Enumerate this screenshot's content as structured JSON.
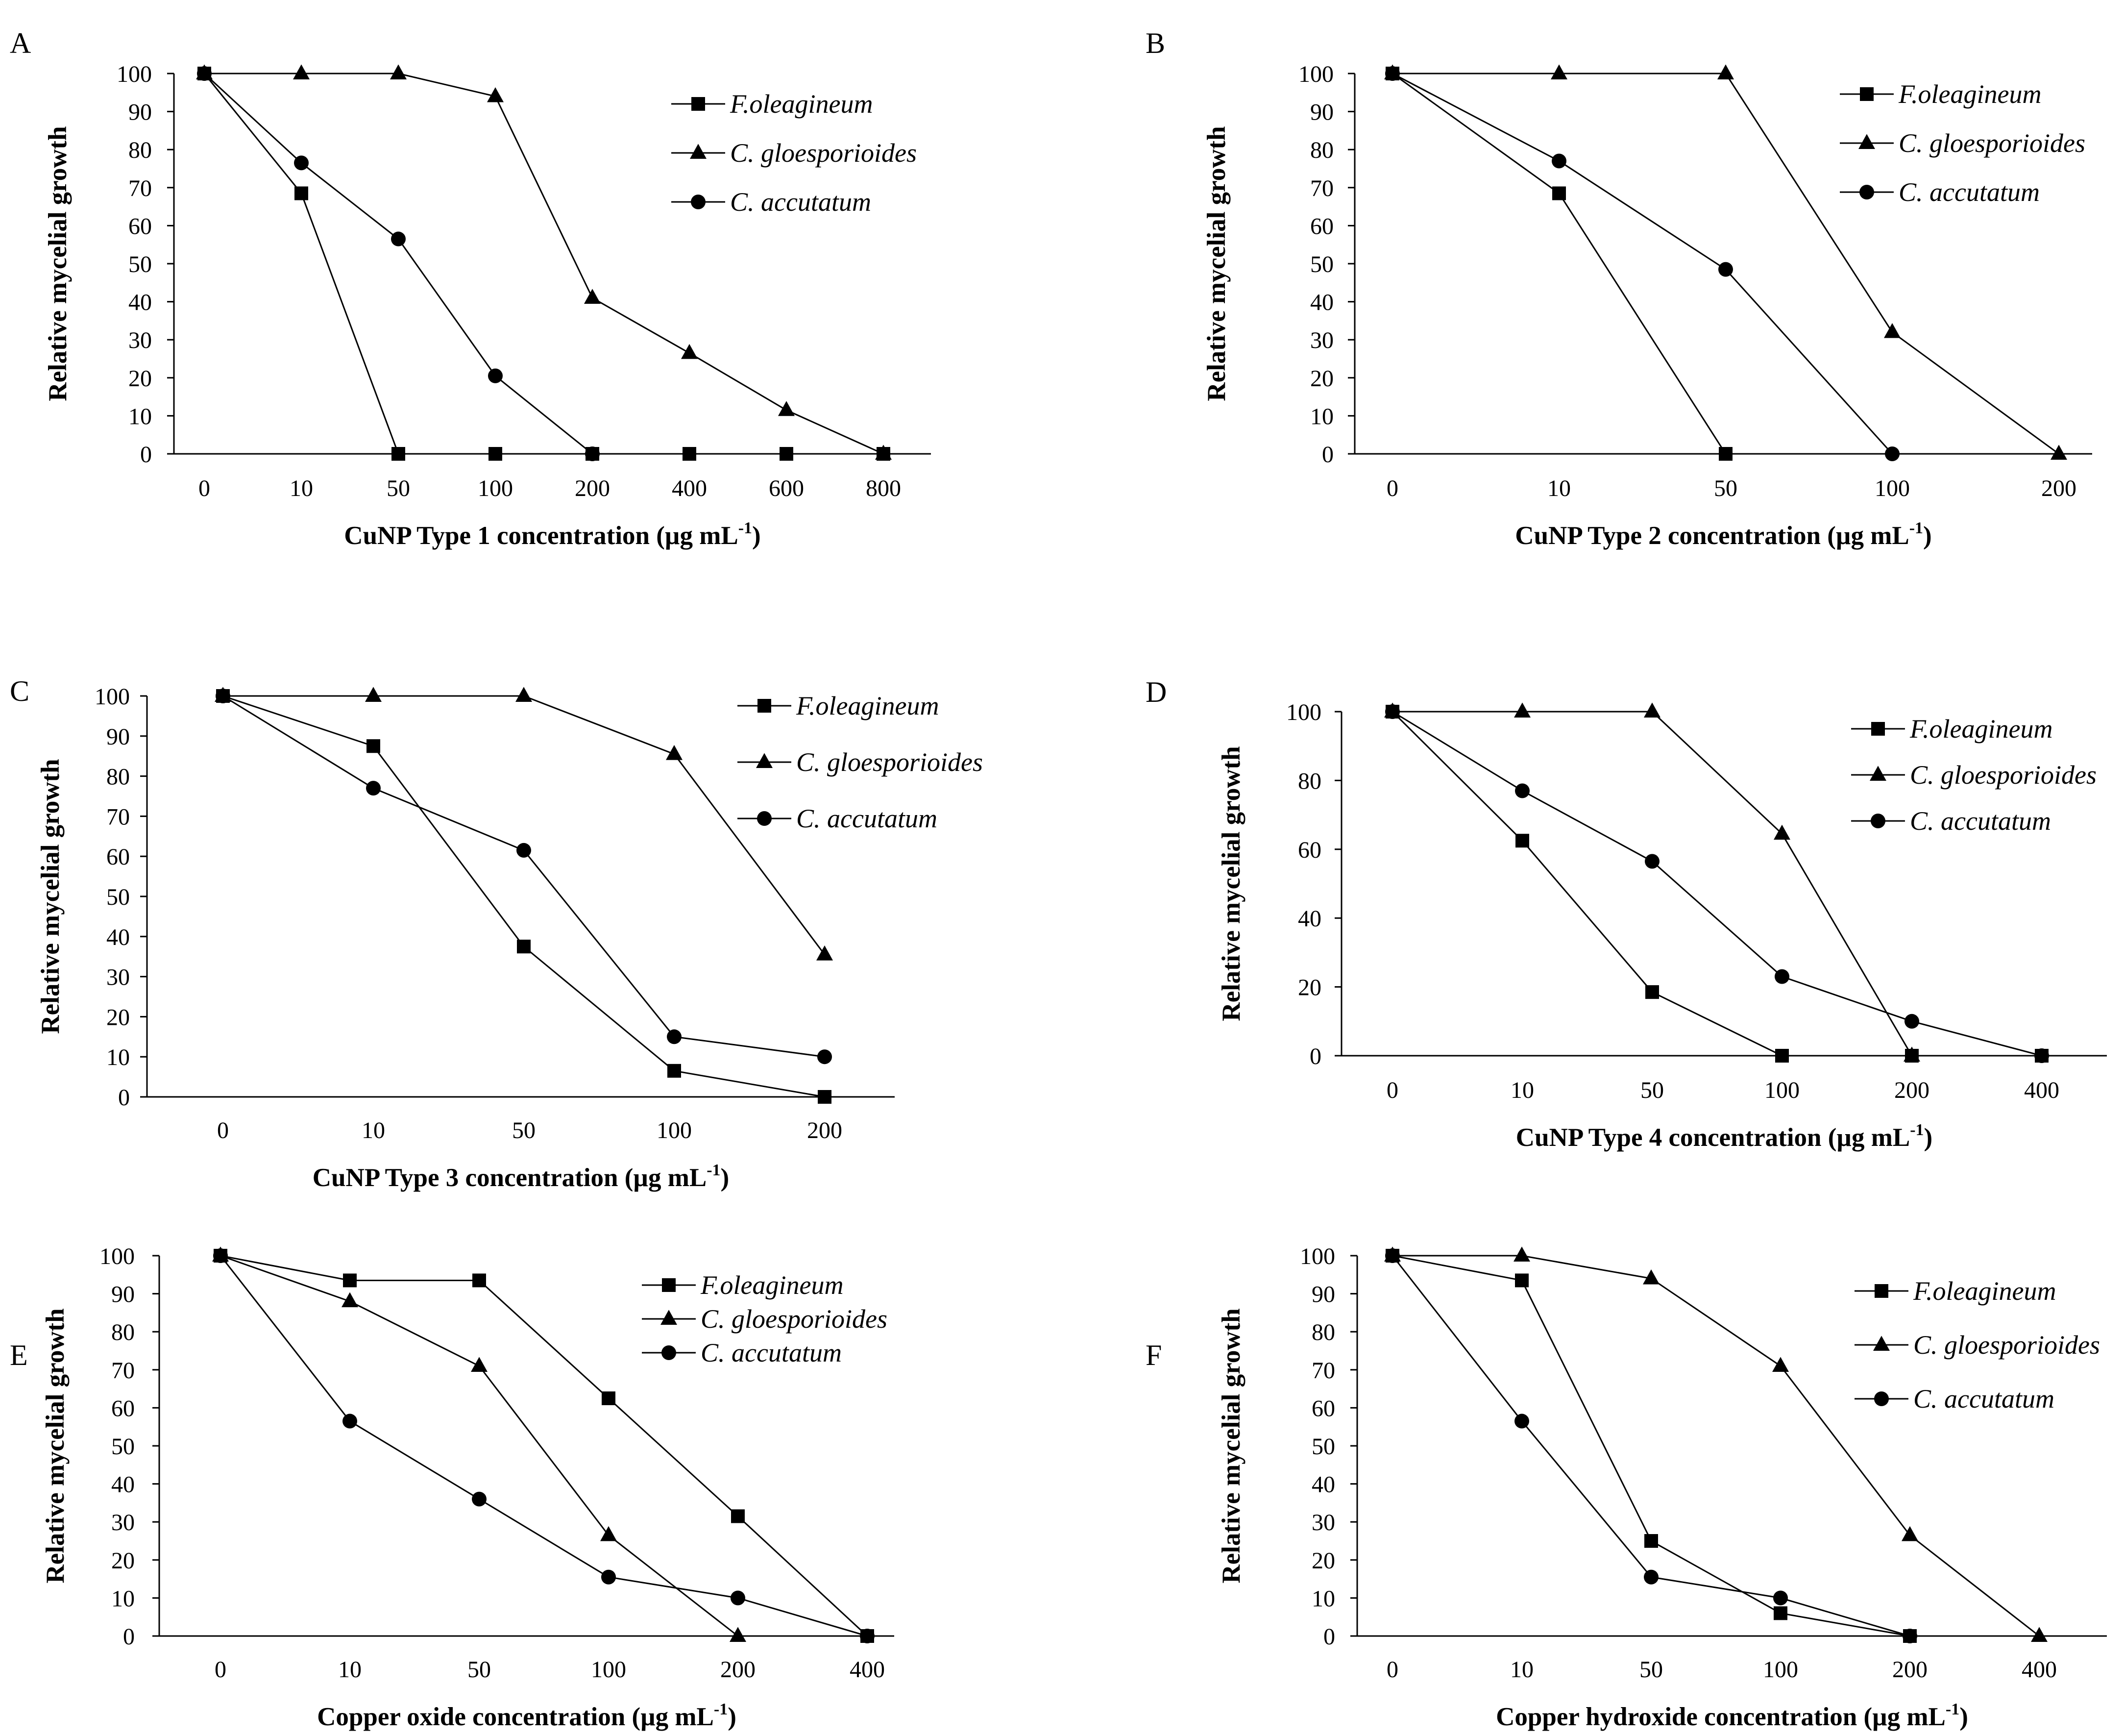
{
  "colors": {
    "line": "#000000",
    "axis": "#000000",
    "background": "#ffffff"
  },
  "chart_data": [
    {
      "panel": "A",
      "type": "line",
      "categories": [
        "0",
        "10",
        "50",
        "100",
        "200",
        "400",
        "600",
        "800"
      ],
      "ylim": [
        0,
        100
      ],
      "yticks": [
        0,
        10,
        20,
        30,
        40,
        50,
        60,
        70,
        80,
        90,
        100
      ],
      "ylabel": "Relative mycelial growth",
      "xlabel_main": "CuNP Type 1 concentration (µg mL",
      "xlabel_sup": "-1",
      "xlabel_end": ")",
      "legend_position": "top-right",
      "series": [
        {
          "name": "F.oleagineum",
          "marker": "square",
          "values": [
            100,
            68.5,
            0,
            0,
            0,
            0,
            0,
            0
          ]
        },
        {
          "name": "C. gloesporioides",
          "marker": "triangle",
          "values": [
            100,
            100,
            100,
            94,
            41,
            26.5,
            11.5,
            0
          ]
        },
        {
          "name": "C. accutatum",
          "marker": "circle",
          "values": [
            100,
            76.5,
            56.5,
            20.5,
            0,
            null,
            null,
            null
          ]
        }
      ]
    },
    {
      "panel": "B",
      "type": "line",
      "categories": [
        "0",
        "10",
        "50",
        "100",
        "200"
      ],
      "ylim": [
        0,
        100
      ],
      "yticks": [
        0,
        10,
        20,
        30,
        40,
        50,
        60,
        70,
        80,
        90,
        100
      ],
      "ylabel": "Relative mycelial growth",
      "xlabel_main": "CuNP Type 2 concentration (µg mL",
      "xlabel_sup": "-1",
      "xlabel_end": ")",
      "legend_position": "top-right",
      "series": [
        {
          "name": "F.oleagineum",
          "marker": "square",
          "values": [
            100,
            68.5,
            0,
            null,
            null
          ]
        },
        {
          "name": "C. gloesporioides",
          "marker": "triangle",
          "values": [
            100,
            100,
            100,
            32,
            0
          ]
        },
        {
          "name": "C. accutatum",
          "marker": "circle",
          "values": [
            100,
            77,
            48.5,
            0,
            null
          ]
        }
      ]
    },
    {
      "panel": "C",
      "type": "line",
      "categories": [
        "0",
        "10",
        "50",
        "100",
        "200"
      ],
      "ylim": [
        0,
        100
      ],
      "yticks": [
        0,
        10,
        20,
        30,
        40,
        50,
        60,
        70,
        80,
        90,
        100
      ],
      "ylabel": "Relative mycelial growth",
      "xlabel_main": "CuNP Type 3 concentration (µg mL",
      "xlabel_sup": "-1",
      "xlabel_end": ")",
      "legend_position": "top-right",
      "series": [
        {
          "name": "F.oleagineum",
          "marker": "square",
          "values": [
            100,
            87.5,
            37.5,
            6.5,
            0
          ]
        },
        {
          "name": "C. gloesporioides",
          "marker": "triangle",
          "values": [
            100,
            100,
            100,
            85.5,
            35.5
          ]
        },
        {
          "name": "C. accutatum",
          "marker": "circle",
          "values": [
            100,
            77,
            61.5,
            15,
            10
          ]
        }
      ]
    },
    {
      "panel": "D",
      "type": "line",
      "categories": [
        "0",
        "10",
        "50",
        "100",
        "200",
        "400"
      ],
      "ylim": [
        0,
        100
      ],
      "yticks": [
        0,
        20,
        40,
        60,
        80,
        100
      ],
      "ylabel": "Relative mycelial growth",
      "xlabel_main": "CuNP Type 4 concentration (µg mL",
      "xlabel_sup": "-1",
      "xlabel_end": ")",
      "legend_position": "top-right",
      "series": [
        {
          "name": "F.oleagineum",
          "marker": "square",
          "values": [
            100,
            62.5,
            18.5,
            0,
            0,
            0
          ]
        },
        {
          "name": "C. gloesporioides",
          "marker": "triangle",
          "values": [
            100,
            100,
            100,
            64.5,
            0,
            null
          ]
        },
        {
          "name": "C. accutatum",
          "marker": "circle",
          "values": [
            100,
            77,
            56.5,
            23,
            10,
            0
          ]
        }
      ]
    },
    {
      "panel": "E",
      "type": "line",
      "categories": [
        "0",
        "10",
        "50",
        "100",
        "200",
        "400"
      ],
      "ylim": [
        0,
        100
      ],
      "yticks": [
        0,
        10,
        20,
        30,
        40,
        50,
        60,
        70,
        80,
        90,
        100
      ],
      "ylabel": "Relative mycelial growth",
      "xlabel_main": "Copper oxide concentration (µg mL",
      "xlabel_sup": "-1",
      "xlabel_end": ")",
      "legend_position": "top-right",
      "series": [
        {
          "name": "F.oleagineum",
          "marker": "square",
          "values": [
            100,
            93.5,
            93.5,
            62.5,
            31.5,
            0
          ]
        },
        {
          "name": "C. gloesporioides",
          "marker": "triangle",
          "values": [
            100,
            88,
            71,
            26.5,
            0,
            null
          ]
        },
        {
          "name": "C. accutatum",
          "marker": "circle",
          "values": [
            100,
            56.5,
            36,
            15.5,
            10,
            0
          ]
        }
      ]
    },
    {
      "panel": "F",
      "type": "line",
      "categories": [
        "0",
        "10",
        "50",
        "100",
        "200",
        "400"
      ],
      "ylim": [
        0,
        100
      ],
      "yticks": [
        0,
        10,
        20,
        30,
        40,
        50,
        60,
        70,
        80,
        90,
        100
      ],
      "ylabel": "Relative mycelial growth",
      "xlabel_main": "Copper hydroxide concentration (µg mL",
      "xlabel_sup": "-1",
      "xlabel_end": ")",
      "legend_position": "top-right",
      "series": [
        {
          "name": "F.oleagineum",
          "marker": "square",
          "values": [
            100,
            93.5,
            25,
            6,
            0,
            null
          ]
        },
        {
          "name": "C. gloesporioides",
          "marker": "triangle",
          "values": [
            100,
            100,
            94,
            71,
            26.5,
            0
          ]
        },
        {
          "name": "C. accutatum",
          "marker": "circle",
          "values": [
            100,
            56.5,
            15.5,
            10,
            0,
            null
          ]
        }
      ]
    }
  ]
}
